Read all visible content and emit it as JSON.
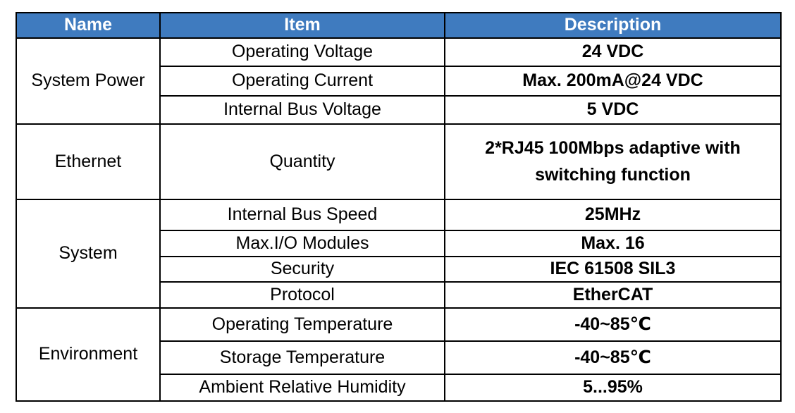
{
  "header": {
    "name": "Name",
    "item": "Item",
    "description": "Description"
  },
  "groups": [
    {
      "name": "System Power",
      "rows": [
        {
          "item": "Operating Voltage",
          "description": "24 VDC"
        },
        {
          "item": "Operating Current",
          "description": "Max. 200mA@24 VDC"
        },
        {
          "item": "Internal Bus Voltage",
          "description": "5 VDC"
        }
      ]
    },
    {
      "name": "Ethernet",
      "rows": [
        {
          "item": "Quantity",
          "description_line1": "2*RJ45 100Mbps adaptive with",
          "description_line2": "switching function"
        }
      ]
    },
    {
      "name": "System",
      "rows": [
        {
          "item": "Internal Bus Speed",
          "description": "25MHz"
        },
        {
          "item": "Max.I/O Modules",
          "description": "Max. 16"
        },
        {
          "item": "Security",
          "description": "IEC 61508 SIL3"
        },
        {
          "item": "Protocol",
          "description": "EtherCAT"
        }
      ]
    },
    {
      "name": "Environment",
      "rows": [
        {
          "item": "Operating Temperature",
          "description": "-40~85℃"
        },
        {
          "item": "Storage Temperature",
          "description": "-40~85℃"
        },
        {
          "item": "Ambient Relative Humidity",
          "description": "5...95%"
        }
      ]
    }
  ],
  "colors": {
    "header_background": "#3f7bbf",
    "header_text": "#ffffff",
    "border": "#000000"
  }
}
